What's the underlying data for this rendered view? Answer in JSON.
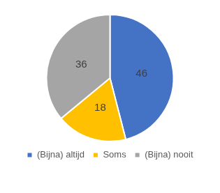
{
  "chart_data": {
    "type": "pie",
    "categories": [
      "(Bijna) altijd",
      "Soms",
      "(Bijna) nooit"
    ],
    "values": [
      46,
      18,
      36
    ],
    "colors": [
      "#4472c4",
      "#ffc000",
      "#a5a5a5"
    ],
    "legend": "bottom",
    "data_labels": true
  }
}
